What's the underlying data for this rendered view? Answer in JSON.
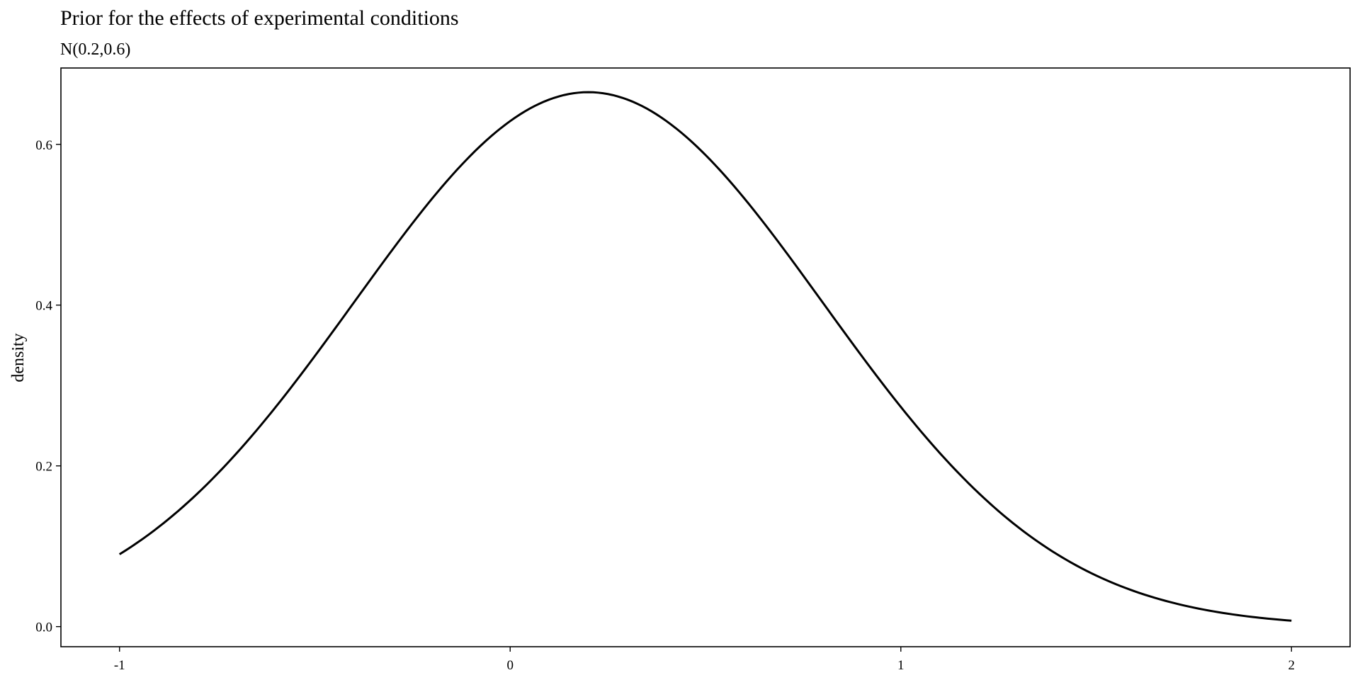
{
  "chart_data": {
    "type": "line",
    "title": "Prior for the effects of experimental conditions",
    "subtitle": "N(0.2,0.6)",
    "xlabel": "",
    "ylabel": "density",
    "xlim": [
      -1.15,
      2.15
    ],
    "ylim": [
      -0.025,
      0.695
    ],
    "grid": false,
    "x_ticks": [
      -1,
      0,
      1,
      2
    ],
    "x_tick_labels": [
      "-1",
      "0",
      "1",
      "2"
    ],
    "y_ticks": [
      0.0,
      0.2,
      0.4,
      0.6
    ],
    "y_tick_labels": [
      "0.0",
      "0.2",
      "0.4",
      "0.6"
    ],
    "series": [
      {
        "distribution": "normal",
        "mean": 0.2,
        "sd": 0.6,
        "x": [
          -1.0,
          -0.9,
          -0.8,
          -0.7,
          -0.6,
          -0.5,
          -0.4,
          -0.3,
          -0.2,
          -0.1,
          0.0,
          0.1,
          0.2,
          0.3,
          0.4,
          0.5,
          0.6,
          0.7,
          0.8,
          0.9,
          1.0,
          1.1,
          1.2,
          1.3,
          1.4,
          1.5,
          1.6,
          1.7,
          1.8,
          1.9,
          2.0
        ],
        "y": [
          0.09,
          0.123,
          0.164,
          0.213,
          0.269,
          0.332,
          0.399,
          0.466,
          0.531,
          0.589,
          0.629,
          0.657,
          0.665,
          0.657,
          0.629,
          0.589,
          0.531,
          0.466,
          0.399,
          0.332,
          0.269,
          0.213,
          0.164,
          0.123,
          0.09,
          0.064,
          0.044,
          0.029,
          0.019,
          0.012,
          0.007
        ],
        "color": "#000000"
      }
    ]
  }
}
